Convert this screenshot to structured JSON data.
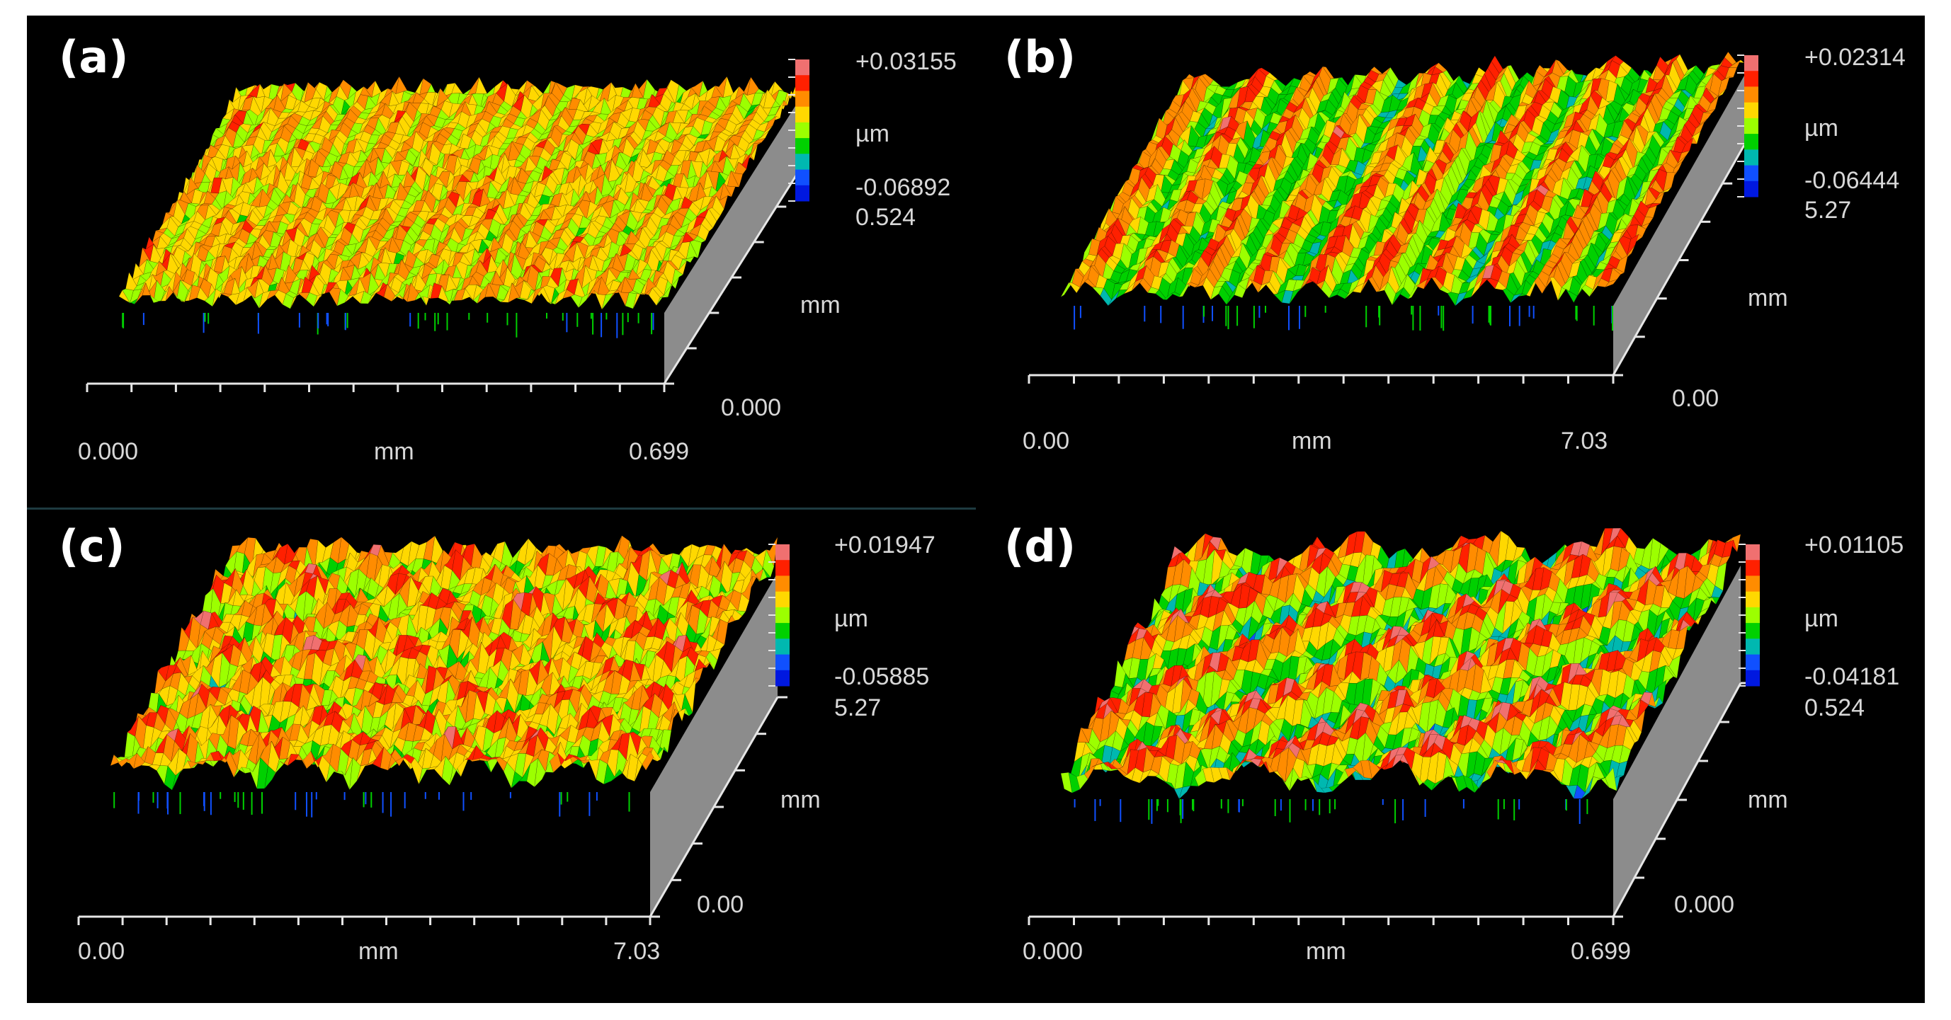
{
  "figure": {
    "panels": [
      {
        "label": "(a)",
        "z_max": "+0.03155",
        "z_unit": "µm",
        "z_min": "-0.06892",
        "y_max": "0.524",
        "y_unit": "mm",
        "y_min": "0.000",
        "x_min": "0.000",
        "x_unit": "mm",
        "x_max": "0.699",
        "texture": "fine",
        "peak_seed": 11
      },
      {
        "label": "(b)",
        "z_max": "+0.02314",
        "z_unit": "µm",
        "z_min": "-0.06444",
        "y_max": "5.27",
        "y_unit": "mm",
        "y_min": "0.00",
        "x_min": "0.00",
        "x_unit": "mm",
        "x_max": "7.03",
        "texture": "striated",
        "peak_seed": 23
      },
      {
        "label": "(c)",
        "z_max": "+0.01947",
        "z_unit": "µm",
        "z_min": "-0.05885",
        "y_max": "5.27",
        "y_unit": "mm",
        "y_min": "0.00",
        "x_min": "0.00",
        "x_unit": "mm",
        "x_max": "7.03",
        "texture": "bumpy",
        "peak_seed": 37
      },
      {
        "label": "(d)",
        "z_max": "+0.01105",
        "z_unit": "µm",
        "z_min": "-0.04181",
        "y_max": "0.524",
        "y_unit": "mm",
        "y_min": "0.000",
        "x_min": "0.000",
        "x_unit": "mm",
        "x_max": "0.699",
        "texture": "wavy",
        "peak_seed": 53
      }
    ],
    "colors": {
      "background": "#000000",
      "axis": "#e6e6e6",
      "wall": "#8c8c8c",
      "text": "#d8d8d8",
      "label": "#ffffff",
      "scale": [
        "#f07070",
        "#ff2000",
        "#ff8c00",
        "#ffd800",
        "#9cff00",
        "#00d000",
        "#00b8b0",
        "#1050ff",
        "#0018e0"
      ]
    }
  }
}
